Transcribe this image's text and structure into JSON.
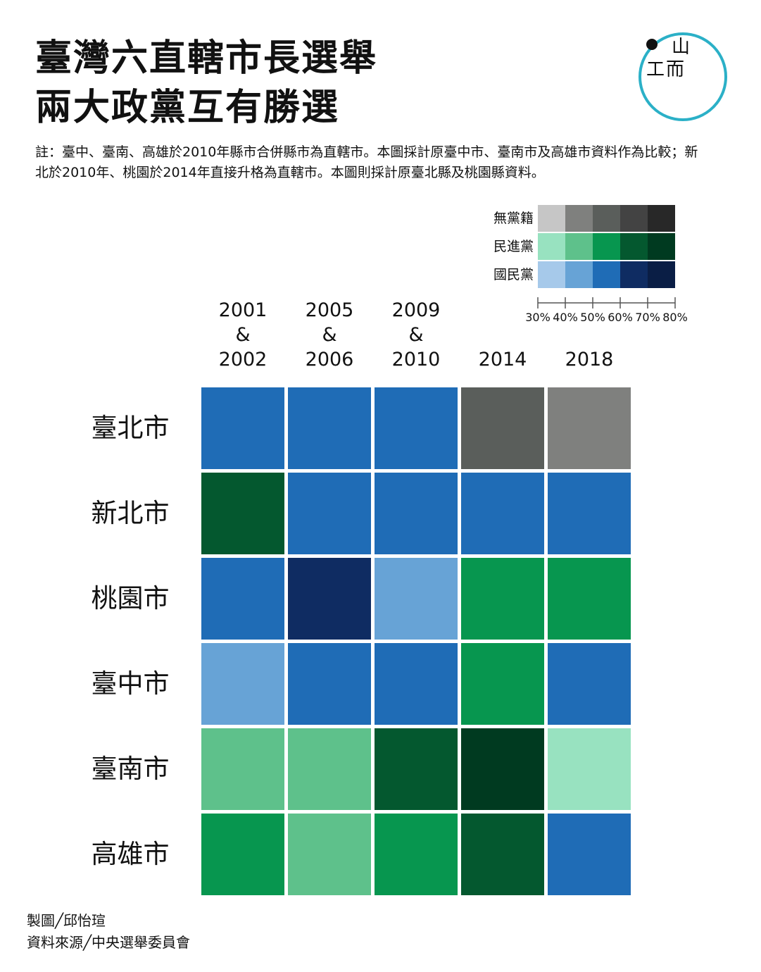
{
  "title": {
    "line1": "臺灣六直轄市長選舉",
    "line2": "兩大政黨互有勝選"
  },
  "note": "註：臺中、臺南、高雄於2010年縣市合併縣市為直轄市。本圖採計原臺中市、臺南市及高雄市資料作為比較；新北於2010年、桃園於2014年直接升格為直轄市。本圖則採計原臺北縣及桃園縣資料。",
  "logo": {
    "icon": "logo-icon",
    "glyphs": "山而",
    "ring_color": "#2bb0c7"
  },
  "legend": {
    "rows": [
      {
        "label": "無黨籍",
        "colors": [
          "#c6c6c6",
          "#7f807e",
          "#5a5e5b",
          "#434343",
          "#282828"
        ]
      },
      {
        "label": "民進黨",
        "colors": [
          "#98e2c0",
          "#5ec18b",
          "#07964f",
          "#04582f",
          "#003a20"
        ]
      },
      {
        "label": "國民黨",
        "colors": [
          "#a6c9ea",
          "#67a3d6",
          "#1f6cb6",
          "#0f2c62",
          "#0a1e45"
        ]
      }
    ],
    "scale": [
      "30%",
      "40%",
      "50%",
      "60%",
      "70%",
      "80%"
    ]
  },
  "chart_data": {
    "type": "heatmap",
    "title": "臺灣六直轄市長選舉 兩大政黨互有勝選",
    "x": [
      [
        "2001",
        "&",
        "2002"
      ],
      [
        "2005",
        "&",
        "2006"
      ],
      [
        "2009",
        "&",
        "2010"
      ],
      [
        "2014"
      ],
      [
        "2018"
      ]
    ],
    "y": [
      "臺北市",
      "新北市",
      "桃園市",
      "臺中市",
      "臺南市",
      "高雄市"
    ],
    "legend_placement": "top-right",
    "parties": [
      "無黨籍",
      "民進黨",
      "國民黨"
    ],
    "vote_share_bins": [
      "30%",
      "40%",
      "50%",
      "60%",
      "70%",
      "80%"
    ],
    "cells": [
      [
        {
          "party": "國民黨",
          "bin": "50%-60%"
        },
        {
          "party": "國民黨",
          "bin": "50%-60%"
        },
        {
          "party": "國民黨",
          "bin": "50%-60%"
        },
        {
          "party": "無黨籍",
          "bin": "50%-60%"
        },
        {
          "party": "無黨籍",
          "bin": "40%-50%"
        }
      ],
      [
        {
          "party": "民進黨",
          "bin": "60%-70%"
        },
        {
          "party": "國民黨",
          "bin": "50%-60%"
        },
        {
          "party": "國民黨",
          "bin": "50%-60%"
        },
        {
          "party": "國民黨",
          "bin": "50%-60%"
        },
        {
          "party": "國民黨",
          "bin": "50%-60%"
        }
      ],
      [
        {
          "party": "國民黨",
          "bin": "50%-60%"
        },
        {
          "party": "國民黨",
          "bin": "60%-70%"
        },
        {
          "party": "國民黨",
          "bin": "40%-50%"
        },
        {
          "party": "民進黨",
          "bin": "50%-60%"
        },
        {
          "party": "民進黨",
          "bin": "50%-60%"
        }
      ],
      [
        {
          "party": "國民黨",
          "bin": "40%-50%"
        },
        {
          "party": "國民黨",
          "bin": "50%-60%"
        },
        {
          "party": "國民黨",
          "bin": "50%-60%"
        },
        {
          "party": "民進黨",
          "bin": "50%-60%"
        },
        {
          "party": "國民黨",
          "bin": "50%-60%"
        }
      ],
      [
        {
          "party": "民進黨",
          "bin": "40%-50%"
        },
        {
          "party": "民進黨",
          "bin": "40%-50%"
        },
        {
          "party": "民進黨",
          "bin": "60%-70%"
        },
        {
          "party": "民進黨",
          "bin": "70%-80%"
        },
        {
          "party": "民進黨",
          "bin": "30%-40%"
        }
      ],
      [
        {
          "party": "民進黨",
          "bin": "50%-60%"
        },
        {
          "party": "民進黨",
          "bin": "40%-50%"
        },
        {
          "party": "民進黨",
          "bin": "50%-60%"
        },
        {
          "party": "民進黨",
          "bin": "60%-70%"
        },
        {
          "party": "國民黨",
          "bin": "50%-60%"
        }
      ]
    ],
    "colors": {
      "無黨籍": [
        "#c6c6c6",
        "#7f807e",
        "#5a5e5b",
        "#434343",
        "#282828"
      ],
      "民進黨": [
        "#98e2c0",
        "#5ec18b",
        "#07964f",
        "#04582f",
        "#003a20"
      ],
      "國民黨": [
        "#a6c9ea",
        "#67a3d6",
        "#1f6cb6",
        "#0f2c62",
        "#0a1e45"
      ]
    }
  },
  "credits": {
    "author": "製圖╱邱怡瑄",
    "source": "資料來源╱中央選舉委員會"
  }
}
